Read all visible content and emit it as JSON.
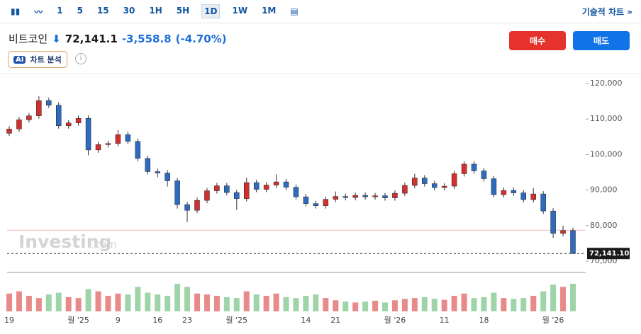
{
  "toolbar": {
    "intervals": [
      "1",
      "5",
      "15",
      "30",
      "1H",
      "5H",
      "1D",
      "1W",
      "1M"
    ],
    "active": "1D",
    "tech_chart": "기술적 차트 »"
  },
  "header": {
    "name": "비트코인",
    "price": "72,141.1",
    "change": "-3,558.8",
    "change_pct": "(-4.70%)",
    "buy": "매수",
    "sell": "매도",
    "ai_badge": "AI",
    "ai_label": "차트 분석"
  },
  "watermark": {
    "brand": "Investing",
    "suffix": ".com"
  },
  "chart_data": {
    "type": "candlestick",
    "categories": [
      "19",
      null,
      null,
      null,
      null,
      null,
      null,
      "월 '25",
      null,
      null,
      null,
      "9",
      null,
      null,
      null,
      "16",
      null,
      null,
      "23",
      null,
      null,
      null,
      null,
      "월 '25",
      null,
      null,
      null,
      null,
      null,
      null,
      "14",
      null,
      null,
      "21",
      null,
      null,
      null,
      null,
      null,
      "월 '26",
      null,
      null,
      null,
      null,
      "11",
      null,
      null,
      null,
      "18",
      null,
      null,
      null,
      null,
      null,
      null,
      "월 '26",
      null,
      null
    ],
    "open": [
      106000,
      107200,
      109800,
      110900,
      115200,
      113900,
      108100,
      108900,
      110200,
      101300,
      102800,
      103100,
      105600,
      103700,
      98900,
      95200,
      94800,
      92600,
      85900,
      84300,
      87100,
      89800,
      91200,
      89300,
      87600,
      92100,
      90200,
      91400,
      92300,
      90800,
      88100,
      86200,
      85600,
      87400,
      88200,
      87900,
      88500,
      88100,
      88400,
      87800,
      89100,
      91300,
      93400,
      91800,
      90700,
      91100,
      94600,
      97300,
      95400,
      93200,
      88700,
      89900,
      89200,
      87300,
      88900,
      84100,
      77800,
      78600
    ],
    "high": [
      108000,
      110600,
      111700,
      116400,
      116000,
      114700,
      109700,
      111000,
      111000,
      103600,
      103900,
      106900,
      106400,
      104500,
      99700,
      96000,
      95600,
      93400,
      86700,
      87900,
      90600,
      92000,
      92000,
      90100,
      93500,
      92900,
      92200,
      94400,
      93100,
      91600,
      88900,
      87000,
      88200,
      89600,
      89000,
      89300,
      89300,
      89200,
      89200,
      89900,
      92100,
      94600,
      94200,
      92600,
      91900,
      95400,
      98100,
      98100,
      96200,
      94000,
      90700,
      90700,
      90000,
      90600,
      89700,
      84900,
      80000,
      79400
    ],
    "low": [
      105200,
      106400,
      109000,
      110100,
      113100,
      107300,
      107300,
      108100,
      99800,
      100500,
      102000,
      102300,
      102900,
      98100,
      94400,
      93600,
      91000,
      84800,
      81000,
      83500,
      86300,
      89000,
      88500,
      84400,
      86800,
      89400,
      89400,
      90600,
      90000,
      87300,
      85400,
      84800,
      84800,
      86600,
      87100,
      87100,
      87300,
      87300,
      87000,
      87000,
      88300,
      90500,
      91000,
      89900,
      89900,
      90300,
      93800,
      94600,
      92400,
      87900,
      87900,
      88400,
      86500,
      86500,
      83300,
      76500,
      77000,
      72000
    ],
    "close": [
      107200,
      109800,
      110900,
      115200,
      113900,
      108100,
      108900,
      110200,
      101300,
      102800,
      103100,
      105600,
      103700,
      98900,
      95200,
      94800,
      92600,
      85900,
      84300,
      87100,
      89800,
      91200,
      89300,
      87600,
      92100,
      90200,
      91400,
      92300,
      90800,
      88100,
      86200,
      85600,
      87400,
      88200,
      87900,
      88500,
      88100,
      88400,
      87800,
      89100,
      91300,
      93400,
      91800,
      90700,
      91100,
      94600,
      97300,
      95400,
      93200,
      88700,
      89900,
      89200,
      87300,
      88900,
      84100,
      77800,
      78600,
      72141.1
    ],
    "volume": [
      40,
      45,
      35,
      30,
      38,
      42,
      32,
      30,
      50,
      45,
      35,
      40,
      38,
      55,
      42,
      38,
      35,
      62,
      55,
      40,
      38,
      35,
      32,
      30,
      45,
      38,
      35,
      40,
      32,
      30,
      35,
      38,
      30,
      25,
      22,
      20,
      22,
      24,
      20,
      25,
      28,
      30,
      32,
      28,
      26,
      35,
      40,
      30,
      32,
      42,
      30,
      28,
      30,
      35,
      45,
      60,
      55,
      62
    ],
    "volume_lim": [
      0,
      70
    ],
    "up_color": "#d32f2f",
    "down_color": "#2e6bbf",
    "vol_up_color": "#e88a8a",
    "vol_down_color": "#9fd3a8",
    "ylim": [
      67000,
      122000
    ],
    "yticks": [
      {
        "value": 70000,
        "label": "70,000"
      },
      {
        "value": 80000,
        "label": "80,000"
      },
      {
        "value": 90000,
        "label": "90,000"
      },
      {
        "value": 100000,
        "label": "100,000"
      },
      {
        "value": 110000,
        "label": "110,000"
      },
      {
        "value": 120000,
        "label": "120,000"
      }
    ],
    "last_label": "72,141.10",
    "reference_line": 78700
  }
}
